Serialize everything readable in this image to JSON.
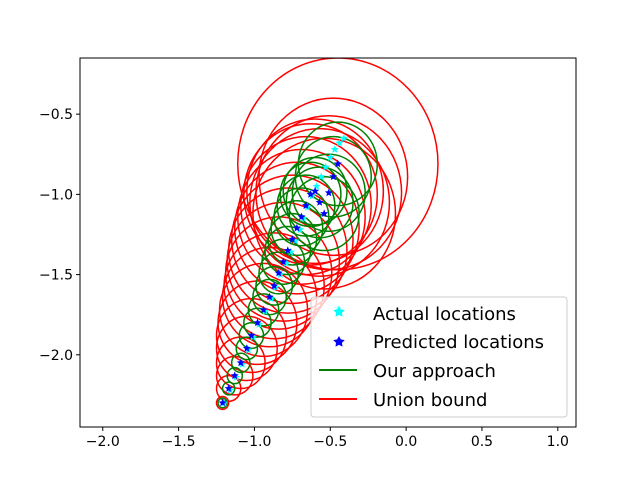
{
  "chart_data": {
    "type": "scatter",
    "title": "",
    "xlabel": "",
    "ylabel": "",
    "xlim": [
      -2.15,
      1.12
    ],
    "ylim": [
      -2.45,
      -0.15
    ],
    "xticks": [
      -2.0,
      -1.5,
      -1.0,
      -0.5,
      0.0,
      0.5,
      1.0
    ],
    "yticks": [
      -2.0,
      -1.5,
      -1.0,
      -0.5
    ],
    "xtick_labels": [
      "−2.0",
      "−1.5",
      "−1.0",
      "−0.5",
      "0.0",
      "0.5",
      "1.0"
    ],
    "ytick_labels": [
      "−2.0",
      "−1.5",
      "−1.0",
      "−0.5"
    ],
    "grid": false,
    "legend_position": "lower-right",
    "series": [
      {
        "name": "Actual locations",
        "marker": "star",
        "color": "#00ffff",
        "x": [
          -1.2,
          -1.16,
          -1.12,
          -1.08,
          -1.04,
          -1.01,
          -0.97,
          -0.93,
          -0.89,
          -0.86,
          -0.83,
          -0.79,
          -0.76,
          -0.73,
          -0.7,
          -0.68,
          -0.65,
          -0.62,
          -0.59,
          -0.56,
          -0.53,
          -0.5,
          -0.47,
          -0.44,
          -0.41,
          -0.45
        ],
        "y": [
          -2.3,
          -2.22,
          -2.14,
          -2.06,
          -1.97,
          -1.89,
          -1.81,
          -1.73,
          -1.65,
          -1.58,
          -1.5,
          -1.43,
          -1.36,
          -1.29,
          -1.22,
          -1.15,
          -1.08,
          -1.01,
          -0.95,
          -0.89,
          -0.83,
          -0.77,
          -0.72,
          -0.68,
          -0.65,
          -1.71
        ]
      },
      {
        "name": "Predicted locations",
        "marker": "star",
        "color": "#0000ff",
        "x": [
          -1.21,
          -1.17,
          -1.13,
          -1.09,
          -1.05,
          -1.02,
          -0.98,
          -0.94,
          -0.9,
          -0.87,
          -0.84,
          -0.81,
          -0.78,
          -0.75,
          -0.72,
          -0.69,
          -0.66,
          -0.63,
          -0.6,
          -0.57,
          -0.54,
          -0.51,
          -0.48,
          -0.45
        ],
        "y": [
          -2.3,
          -2.21,
          -2.13,
          -2.05,
          -1.96,
          -1.88,
          -1.8,
          -1.72,
          -1.64,
          -1.57,
          -1.49,
          -1.42,
          -1.35,
          -1.28,
          -1.21,
          -1.14,
          -1.07,
          -1.0,
          -0.98,
          -1.05,
          -1.12,
          -0.99,
          -0.89,
          -0.81
        ]
      },
      {
        "name": "Our approach",
        "type": "circles",
        "color": "#008000",
        "cx": [
          -1.21,
          -1.17,
          -1.13,
          -1.09,
          -1.05,
          -1.02,
          -0.98,
          -0.94,
          -0.9,
          -0.87,
          -0.84,
          -0.81,
          -0.78,
          -0.75,
          -0.72,
          -0.69,
          -0.66,
          -0.63,
          -0.6,
          -0.57,
          -0.54,
          -0.51,
          -0.48,
          -0.45
        ],
        "cy": [
          -2.3,
          -2.21,
          -2.13,
          -2.05,
          -1.96,
          -1.88,
          -1.8,
          -1.72,
          -1.64,
          -1.57,
          -1.49,
          -1.42,
          -1.35,
          -1.28,
          -1.21,
          -1.14,
          -1.07,
          -1.0,
          -0.98,
          -1.05,
          -1.12,
          -0.99,
          -0.89,
          -0.81
        ],
        "r": [
          0.03,
          0.04,
          0.05,
          0.06,
          0.07,
          0.08,
          0.09,
          0.1,
          0.11,
          0.12,
          0.13,
          0.14,
          0.15,
          0.16,
          0.17,
          0.18,
          0.19,
          0.2,
          0.21,
          0.22,
          0.23,
          0.24,
          0.25,
          0.26
        ]
      },
      {
        "name": "Union bound",
        "type": "circles",
        "color": "#ff0000",
        "cx": [
          -1.21,
          -1.17,
          -1.13,
          -1.09,
          -1.05,
          -1.02,
          -0.98,
          -0.94,
          -0.9,
          -0.87,
          -0.84,
          -0.81,
          -0.78,
          -0.75,
          -0.72,
          -0.69,
          -0.66,
          -0.63,
          -0.6,
          -0.57,
          -0.54,
          -0.51,
          -0.48,
          -0.45
        ],
        "cy": [
          -2.3,
          -2.21,
          -2.13,
          -2.05,
          -1.96,
          -1.88,
          -1.8,
          -1.72,
          -1.64,
          -1.57,
          -1.49,
          -1.42,
          -1.35,
          -1.28,
          -1.21,
          -1.14,
          -1.07,
          -1.0,
          -0.98,
          -1.05,
          -1.12,
          -0.99,
          -0.89,
          -0.81
        ],
        "r": [
          0.04,
          0.08,
          0.12,
          0.16,
          0.2,
          0.23,
          0.26,
          0.29,
          0.31,
          0.33,
          0.35,
          0.37,
          0.39,
          0.4,
          0.41,
          0.42,
          0.43,
          0.44,
          0.45,
          0.46,
          0.47,
          0.48,
          0.49,
          0.66
        ]
      }
    ]
  }
}
